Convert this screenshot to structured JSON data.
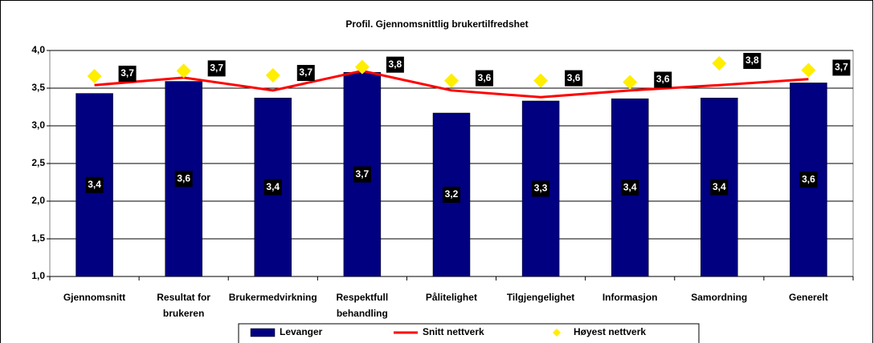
{
  "chart_data": {
    "type": "bar",
    "title": "Profil. Gjennomsnittlig brukertilfredshet",
    "categories": [
      "Gjennomsnitt",
      "Resultat for brukeren",
      "Brukermedvirkning",
      "Respektfull behandling",
      "Pålitelighet",
      "Tilgjengelighet",
      "Informasjon",
      "Samordning",
      "Generelt"
    ],
    "series": [
      {
        "name": "Levanger",
        "type": "bar",
        "color": "#000080",
        "values": [
          3.43,
          3.59,
          3.37,
          3.71,
          3.17,
          3.33,
          3.36,
          3.37,
          3.57
        ],
        "value_labels": [
          "3,4",
          "3,6",
          "3,4",
          "3,7",
          "3,2",
          "3,3",
          "3,4",
          "3,4",
          "3,6"
        ]
      },
      {
        "name": "Snitt nettverk",
        "type": "line",
        "color": "#ff0000",
        "values": [
          3.54,
          3.64,
          3.47,
          3.73,
          3.47,
          3.38,
          3.47,
          3.54,
          3.62
        ]
      },
      {
        "name": "Høyest nettverk",
        "type": "scatter",
        "color": "#ffee00",
        "values": [
          3.66,
          3.73,
          3.67,
          3.78,
          3.6,
          3.6,
          3.58,
          3.83,
          3.74
        ],
        "value_labels": [
          "3,7",
          "3,7",
          "3,7",
          "3,8",
          "3,6",
          "3,6",
          "3,6",
          "3,8",
          "3,7"
        ]
      }
    ],
    "ylim": [
      1.0,
      4.0
    ],
    "yticks": [
      {
        "value": 1.0,
        "label": "1,0"
      },
      {
        "value": 1.5,
        "label": "1,5"
      },
      {
        "value": 2.0,
        "label": "2,0"
      },
      {
        "value": 2.5,
        "label": "2,5"
      },
      {
        "value": 3.0,
        "label": "3,0"
      },
      {
        "value": 3.5,
        "label": "3,5"
      },
      {
        "value": 4.0,
        "label": "4,0"
      }
    ],
    "grid": true,
    "legend": "bottom"
  }
}
